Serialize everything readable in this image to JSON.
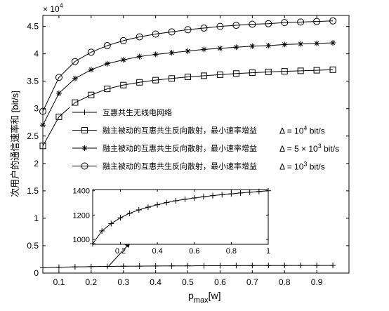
{
  "chart_data": {
    "type": "line",
    "xlabel_base": "p",
    "xlabel_sub": "max",
    "xlabel_unit": "[w]",
    "ylabel": "次用户的通信速率和 [bit/s]",
    "yexponent_base": "× 10",
    "yexponent_power": "4",
    "xlim": [
      0.05,
      1.0
    ],
    "ylim": [
      0,
      4.7
    ],
    "xticks": [
      "0.1",
      "0.2",
      "0.3",
      "0.4",
      "0.5",
      "0.6",
      "0.7",
      "0.8",
      "0.9"
    ],
    "xtick_values": [
      0.1,
      0.2,
      0.3,
      0.4,
      0.5,
      0.6,
      0.7,
      0.8,
      0.9
    ],
    "yticks": [
      "0",
      "0.5",
      "1",
      "1.5",
      "2",
      "2.5",
      "3",
      "3.5",
      "4",
      "4.5"
    ],
    "ytick_values": [
      0,
      0.5,
      1,
      1.5,
      2,
      2.5,
      3,
      3.5,
      4,
      4.5
    ],
    "x": [
      0.05,
      0.1,
      0.15,
      0.2,
      0.25,
      0.3,
      0.35,
      0.4,
      0.45,
      0.5,
      0.55,
      0.6,
      0.65,
      0.7,
      0.75,
      0.8,
      0.85,
      0.9,
      0.95
    ],
    "series": [
      {
        "name": "互惠共生无线电网络",
        "marker": "plus",
        "values": [
          0.096,
          0.107,
          0.113,
          0.118,
          0.122,
          0.125,
          0.127,
          0.129,
          0.131,
          0.132,
          0.134,
          0.135,
          0.136,
          0.137,
          0.137,
          0.138,
          0.139,
          0.139,
          0.14
        ]
      },
      {
        "name": "融主被动的互惠共生反向散射，最小速率增益",
        "delta_label": "Δ = 10",
        "delta_power": "4",
        "delta_unit": " bit/s",
        "marker": "square",
        "values": [
          2.32,
          2.85,
          3.11,
          3.25,
          3.36,
          3.43,
          3.48,
          3.52,
          3.55,
          3.58,
          3.6,
          3.62,
          3.64,
          3.655,
          3.67,
          3.68,
          3.69,
          3.7,
          3.71
        ]
      },
      {
        "name": "融主被动的互惠共生反向散射，最小速率增益",
        "delta_label": "Δ = 5 × 10",
        "delta_power": "3",
        "delta_unit": " bit/s",
        "marker": "star",
        "values": [
          2.7,
          3.28,
          3.55,
          3.71,
          3.82,
          3.89,
          3.95,
          3.99,
          4.02,
          4.05,
          4.08,
          4.1,
          4.12,
          4.14,
          4.15,
          4.17,
          4.18,
          4.19,
          4.2
        ]
      },
      {
        "name": "融主被动的互惠共生反向散射，最小速率增益",
        "delta_label": "Δ = 10",
        "delta_power": "3",
        "delta_unit": " bit/s",
        "marker": "circle",
        "values": [
          2.95,
          3.57,
          3.86,
          4.03,
          4.15,
          4.24,
          4.31,
          4.36,
          4.4,
          4.44,
          4.47,
          4.5,
          4.52,
          4.54,
          4.55,
          4.57,
          4.58,
          4.59,
          4.6
        ]
      }
    ],
    "inset": {
      "xlim": [
        0.05,
        1.0
      ],
      "ylim": [
        960,
        1410
      ],
      "xticks": [
        "0.2",
        "0.4",
        "0.6",
        "0.8",
        "1"
      ],
      "xtick_values": [
        0.2,
        0.4,
        0.6,
        0.8,
        1.0
      ],
      "yticks": [
        "1000",
        "1200",
        "1400"
      ],
      "ytick_values": [
        1000,
        1200,
        1400
      ],
      "x": [
        0.05,
        0.1,
        0.15,
        0.2,
        0.25,
        0.3,
        0.35,
        0.4,
        0.45,
        0.5,
        0.55,
        0.6,
        0.65,
        0.7,
        0.75,
        0.8,
        0.85,
        0.9,
        0.95,
        1.0
      ],
      "values": [
        965,
        1070,
        1130,
        1178,
        1215,
        1243,
        1265,
        1285,
        1303,
        1318,
        1330,
        1341,
        1351,
        1360,
        1368,
        1375,
        1382,
        1388,
        1394,
        1400
      ]
    }
  }
}
